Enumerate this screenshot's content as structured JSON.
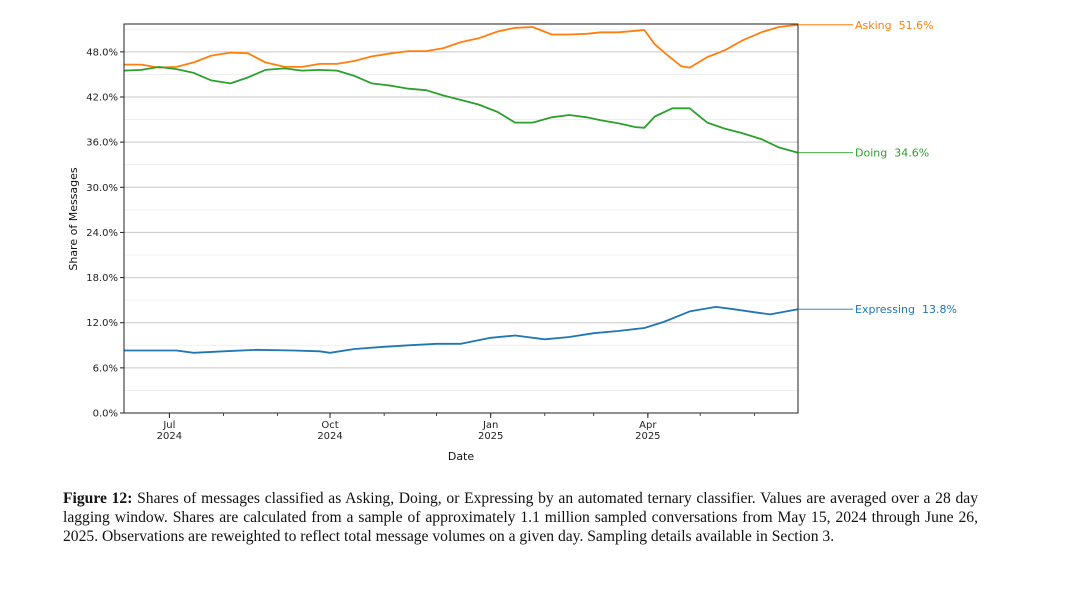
{
  "chart_data": {
    "type": "line",
    "title": "",
    "xlabel": "Date",
    "ylabel": "Share of Messages",
    "xlim": [
      "2024-06-05",
      "2025-06-26"
    ],
    "ylim": [
      0,
      51.7
    ],
    "yticks": [
      "0.0%",
      "6.0%",
      "12.0%",
      "18.0%",
      "24.0%",
      "30.0%",
      "36.0%",
      "42.0%",
      "48.0%"
    ],
    "xticks": [
      {
        "date": "2024-07-01",
        "label": "Jul",
        "year": "2024"
      },
      {
        "date": "2024-10-01",
        "label": "Oct",
        "year": "2024"
      },
      {
        "date": "2025-01-01",
        "label": "Jan",
        "year": "2025"
      },
      {
        "date": "2025-04-01",
        "label": "Apr",
        "year": "2025"
      }
    ],
    "grid": true,
    "series": [
      {
        "name": "Asking",
        "end_label": "Asking  51.6%",
        "color": "#ff7f0e",
        "points": [
          [
            "2024-06-05",
            46.3
          ],
          [
            "2024-06-15",
            46.3
          ],
          [
            "2024-06-25",
            45.9
          ],
          [
            "2024-07-05",
            46.0
          ],
          [
            "2024-07-15",
            46.6
          ],
          [
            "2024-07-25",
            47.5
          ],
          [
            "2024-08-05",
            47.9
          ],
          [
            "2024-08-15",
            47.8
          ],
          [
            "2024-08-25",
            46.6
          ],
          [
            "2024-09-05",
            46.0
          ],
          [
            "2024-09-15",
            46.0
          ],
          [
            "2024-09-25",
            46.4
          ],
          [
            "2024-10-05",
            46.4
          ],
          [
            "2024-10-15",
            46.8
          ],
          [
            "2024-10-25",
            47.4
          ],
          [
            "2024-11-05",
            47.8
          ],
          [
            "2024-11-15",
            48.1
          ],
          [
            "2024-11-25",
            48.1
          ],
          [
            "2024-12-05",
            48.5
          ],
          [
            "2024-12-15",
            49.3
          ],
          [
            "2024-12-25",
            49.8
          ],
          [
            "2025-01-05",
            50.7
          ],
          [
            "2025-01-15",
            51.2
          ],
          [
            "2025-01-25",
            51.3
          ],
          [
            "2025-02-05",
            50.3
          ],
          [
            "2025-02-15",
            50.3
          ],
          [
            "2025-02-25",
            50.4
          ],
          [
            "2025-03-05",
            50.6
          ],
          [
            "2025-03-15",
            50.6
          ],
          [
            "2025-03-25",
            50.8
          ],
          [
            "2025-03-30",
            50.9
          ],
          [
            "2025-04-05",
            49.0
          ],
          [
            "2025-04-12",
            47.6
          ],
          [
            "2025-04-20",
            46.1
          ],
          [
            "2025-04-25",
            45.9
          ],
          [
            "2025-05-05",
            47.3
          ],
          [
            "2025-05-15",
            48.2
          ],
          [
            "2025-05-25",
            49.5
          ],
          [
            "2025-06-05",
            50.6
          ],
          [
            "2025-06-15",
            51.3
          ],
          [
            "2025-06-26",
            51.6
          ]
        ]
      },
      {
        "name": "Doing",
        "end_label": "Doing  34.6%",
        "color": "#2ca02c",
        "points": [
          [
            "2024-06-05",
            45.5
          ],
          [
            "2024-06-15",
            45.6
          ],
          [
            "2024-06-25",
            46.0
          ],
          [
            "2024-07-05",
            45.7
          ],
          [
            "2024-07-15",
            45.2
          ],
          [
            "2024-07-25",
            44.2
          ],
          [
            "2024-08-05",
            43.8
          ],
          [
            "2024-08-15",
            44.6
          ],
          [
            "2024-08-25",
            45.6
          ],
          [
            "2024-09-05",
            45.8
          ],
          [
            "2024-09-15",
            45.5
          ],
          [
            "2024-09-25",
            45.6
          ],
          [
            "2024-10-05",
            45.5
          ],
          [
            "2024-10-15",
            44.8
          ],
          [
            "2024-10-25",
            43.8
          ],
          [
            "2024-11-05",
            43.5
          ],
          [
            "2024-11-15",
            43.1
          ],
          [
            "2024-11-25",
            42.9
          ],
          [
            "2024-12-05",
            42.2
          ],
          [
            "2024-12-15",
            41.6
          ],
          [
            "2024-12-25",
            41.0
          ],
          [
            "2025-01-05",
            40.0
          ],
          [
            "2025-01-15",
            38.6
          ],
          [
            "2025-01-25",
            38.6
          ],
          [
            "2025-02-05",
            39.3
          ],
          [
            "2025-02-15",
            39.6
          ],
          [
            "2025-02-25",
            39.3
          ],
          [
            "2025-03-05",
            38.9
          ],
          [
            "2025-03-15",
            38.5
          ],
          [
            "2025-03-25",
            38.0
          ],
          [
            "2025-03-30",
            37.9
          ],
          [
            "2025-04-05",
            39.4
          ],
          [
            "2025-04-15",
            40.5
          ],
          [
            "2025-04-25",
            40.5
          ],
          [
            "2025-05-05",
            38.6
          ],
          [
            "2025-05-15",
            37.8
          ],
          [
            "2025-05-25",
            37.2
          ],
          [
            "2025-06-05",
            36.4
          ],
          [
            "2025-06-15",
            35.3
          ],
          [
            "2025-06-26",
            34.6
          ]
        ]
      },
      {
        "name": "Expressing",
        "end_label": "Expressing  13.8%",
        "color": "#1f77b4",
        "points": [
          [
            "2024-06-05",
            8.3
          ],
          [
            "2024-06-20",
            8.3
          ],
          [
            "2024-07-05",
            8.3
          ],
          [
            "2024-07-15",
            8.0
          ],
          [
            "2024-08-01",
            8.2
          ],
          [
            "2024-08-20",
            8.4
          ],
          [
            "2024-09-10",
            8.3
          ],
          [
            "2024-09-25",
            8.2
          ],
          [
            "2024-10-01",
            8.0
          ],
          [
            "2024-10-15",
            8.5
          ],
          [
            "2024-11-01",
            8.8
          ],
          [
            "2024-11-15",
            9.0
          ],
          [
            "2024-12-01",
            9.2
          ],
          [
            "2024-12-15",
            9.2
          ],
          [
            "2025-01-01",
            10.0
          ],
          [
            "2025-01-15",
            10.3
          ],
          [
            "2025-02-01",
            9.8
          ],
          [
            "2025-02-15",
            10.1
          ],
          [
            "2025-03-01",
            10.6
          ],
          [
            "2025-03-15",
            10.9
          ],
          [
            "2025-03-30",
            11.3
          ],
          [
            "2025-04-10",
            12.1
          ],
          [
            "2025-04-25",
            13.5
          ],
          [
            "2025-05-10",
            14.1
          ],
          [
            "2025-05-20",
            13.8
          ],
          [
            "2025-06-01",
            13.4
          ],
          [
            "2025-06-10",
            13.1
          ],
          [
            "2025-06-26",
            13.8
          ]
        ]
      }
    ]
  },
  "caption": {
    "label": "Figure 12:",
    "text": " Shares of messages classified as Asking, Doing, or Expressing by an automated ternary classifier. Values are averaged over a 28 day lagging window. Shares are calculated from a sample of approximately 1.1 million sampled conversations from May 15, 2024 through June 26, 2025. Observations are reweighted to reflect total message volumes on a given day. Sampling details available in Section 3."
  }
}
